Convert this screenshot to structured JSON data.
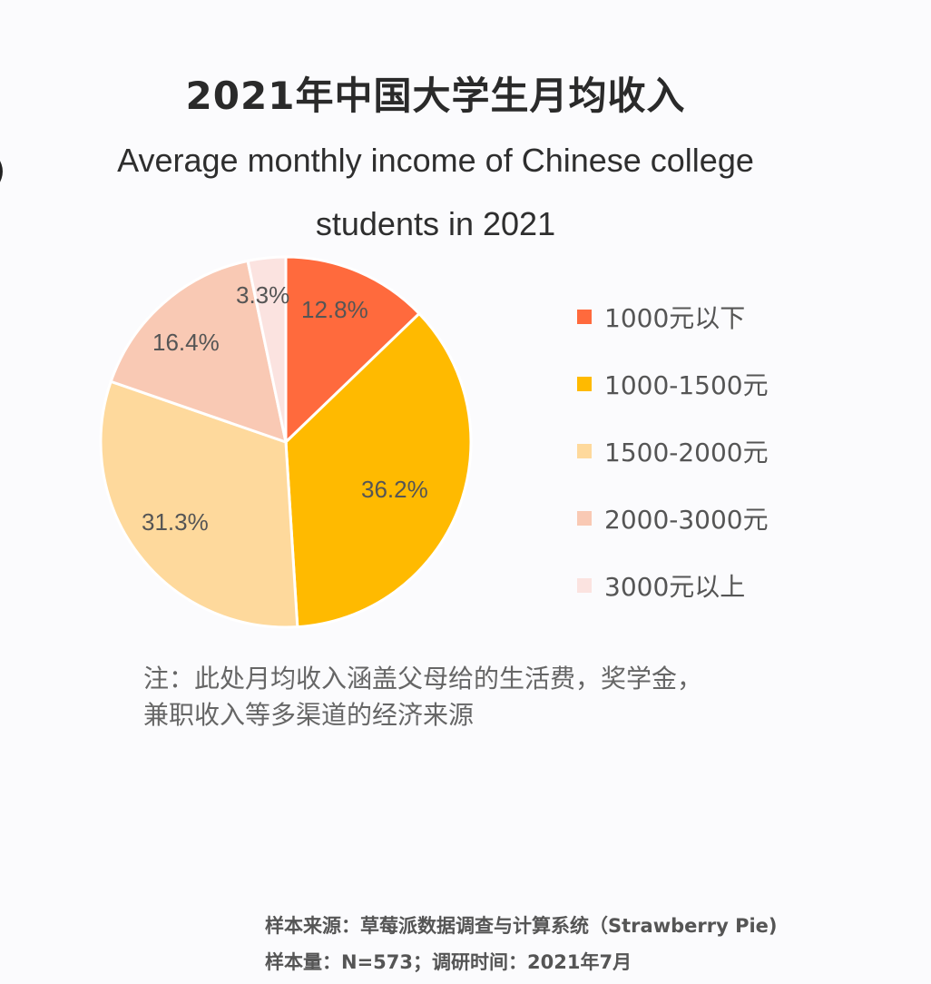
{
  "edge_glyph": ")",
  "chart_data": {
    "type": "pie",
    "title": "2021年中国大学生月均收入",
    "subtitle": "Average monthly income of Chinese college students in 2021",
    "categories": [
      "1000元以下",
      "1000-1500元",
      "1500-2000元",
      "2000-3000元",
      "3000元以上"
    ],
    "values": [
      12.8,
      36.2,
      31.3,
      16.4,
      3.3
    ],
    "unit": "%",
    "colors": [
      "#ff6a3d",
      "#ffba00",
      "#fed99c",
      "#f9c9b4",
      "#fbe3e0"
    ],
    "start_angle": "12 o'clock, clockwise",
    "legend_position": "right",
    "data_labels": [
      "12.8%",
      "36.2%",
      "31.3%",
      "16.4%",
      "3.3%"
    ]
  },
  "title": {
    "cn": "2021年中国大学生月均收入",
    "en": "Average monthly income of Chinese college students in 2021"
  },
  "legend": [
    {
      "label": "1000元以下",
      "color": "#ff6a3d"
    },
    {
      "label": "1000-1500元",
      "color": "#ffba00"
    },
    {
      "label": "1500-2000元",
      "color": "#fed99c"
    },
    {
      "label": "2000-3000元",
      "color": "#f9c9b4"
    },
    {
      "label": "3000元以上",
      "color": "#fbe3e0"
    }
  ],
  "labels": {
    "s0": "12.8%",
    "s1": "36.2%",
    "s2": "31.3%",
    "s3": "16.4%",
    "s4": "3.3%"
  },
  "note": "注：此处月均收入涵盖父母给的生活费，奖学金，兼职收入等多渠道的经济来源",
  "source": {
    "line1": "样本来源：草莓派数据调查与计算系统（Strawberry Pie)",
    "line2": "样本量：N=573；调研时间：2021年7月"
  }
}
